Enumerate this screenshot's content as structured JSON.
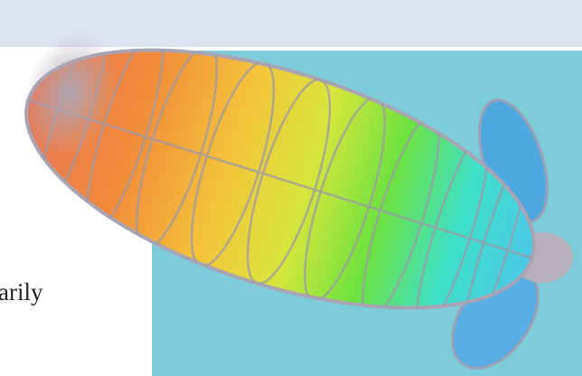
{
  "text": {
    "fragment": "arily"
  }
}
